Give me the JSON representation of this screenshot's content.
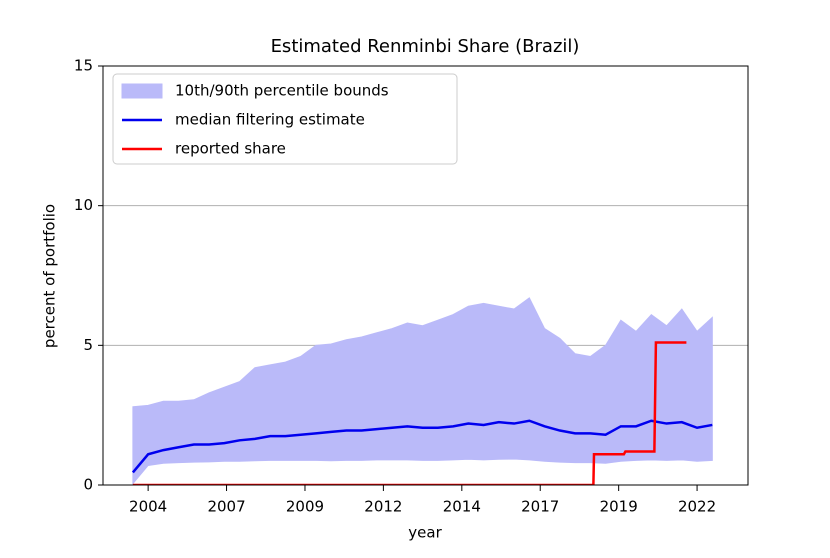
{
  "chart_data": {
    "type": "line",
    "title": "Estimated Renminbi Share (Brazil)",
    "xlabel": "year",
    "ylabel": "percent of portfolio",
    "x": [
      2003.5,
      2004.0,
      2004.5,
      2005.0,
      2005.5,
      2006.0,
      2006.5,
      2007.0,
      2007.5,
      2008.0,
      2008.5,
      2009.0,
      2009.5,
      2010.0,
      2010.5,
      2011.0,
      2011.5,
      2012.0,
      2012.5,
      2013.0,
      2013.5,
      2014.0,
      2014.5,
      2015.0,
      2015.5,
      2016.0,
      2016.5,
      2017.0,
      2017.5,
      2018.0,
      2018.5,
      2019.0,
      2019.5,
      2020.0,
      2020.5,
      2021.0,
      2021.5,
      2022.0,
      2022.5
    ],
    "series": [
      {
        "name": "10th/90th percentile bounds",
        "type": "band",
        "color": "#babaf9",
        "lower": [
          0.05,
          0.7,
          0.78,
          0.8,
          0.82,
          0.83,
          0.85,
          0.85,
          0.87,
          0.88,
          0.88,
          0.88,
          0.88,
          0.87,
          0.88,
          0.88,
          0.9,
          0.9,
          0.9,
          0.88,
          0.88,
          0.9,
          0.92,
          0.9,
          0.92,
          0.93,
          0.9,
          0.85,
          0.82,
          0.8,
          0.8,
          0.78,
          0.85,
          0.88,
          0.9,
          0.88,
          0.9,
          0.85,
          0.88
        ],
        "upper": [
          2.8,
          2.85,
          3.0,
          3.0,
          3.05,
          3.3,
          3.5,
          3.7,
          4.2,
          4.3,
          4.4,
          4.6,
          5.0,
          5.05,
          5.2,
          5.3,
          5.45,
          5.6,
          5.8,
          5.7,
          5.9,
          6.1,
          6.4,
          6.5,
          6.4,
          6.3,
          6.7,
          5.6,
          5.25,
          4.7,
          4.6,
          5.0,
          5.9,
          5.5,
          6.1,
          5.7,
          6.3,
          5.5,
          6.0
        ]
      },
      {
        "name": "median filtering estimate",
        "color": "#0000ee",
        "values": [
          0.45,
          1.1,
          1.25,
          1.35,
          1.45,
          1.45,
          1.5,
          1.6,
          1.65,
          1.75,
          1.75,
          1.8,
          1.85,
          1.9,
          1.95,
          1.95,
          2.0,
          2.05,
          2.1,
          2.05,
          2.05,
          2.1,
          2.2,
          2.15,
          2.25,
          2.2,
          2.3,
          2.1,
          1.95,
          1.85,
          1.85,
          1.8,
          2.1,
          2.1,
          2.3,
          2.2,
          2.25,
          2.05,
          2.15
        ]
      },
      {
        "name": "reported share",
        "color": "#ff0000",
        "x": [
          2003.5,
          2018.6,
          2018.62,
          2019.6,
          2019.65,
          2020.6,
          2020.65,
          2021.65
        ],
        "values": [
          0,
          0,
          1.1,
          1.1,
          1.2,
          1.2,
          5.1,
          5.1
        ]
      }
    ],
    "xlim": [
      2002.52,
      2023.67
    ],
    "xticks": [
      2004,
      {
        "value": 2006.571,
        "label": "2007"
      },
      {
        "value": 2009.143,
        "label": "2009"
      },
      {
        "value": 2011.714,
        "label": "2012"
      },
      {
        "value": 2014.286,
        "label": "2014"
      },
      {
        "value": 2016.857,
        "label": "2017"
      },
      {
        "value": 2019.429,
        "label": "2019"
      },
      2022
    ],
    "ylim": [
      0,
      15
    ],
    "yticks": [
      0,
      5,
      10,
      15
    ],
    "grid": "y",
    "legend": "upper-left"
  }
}
